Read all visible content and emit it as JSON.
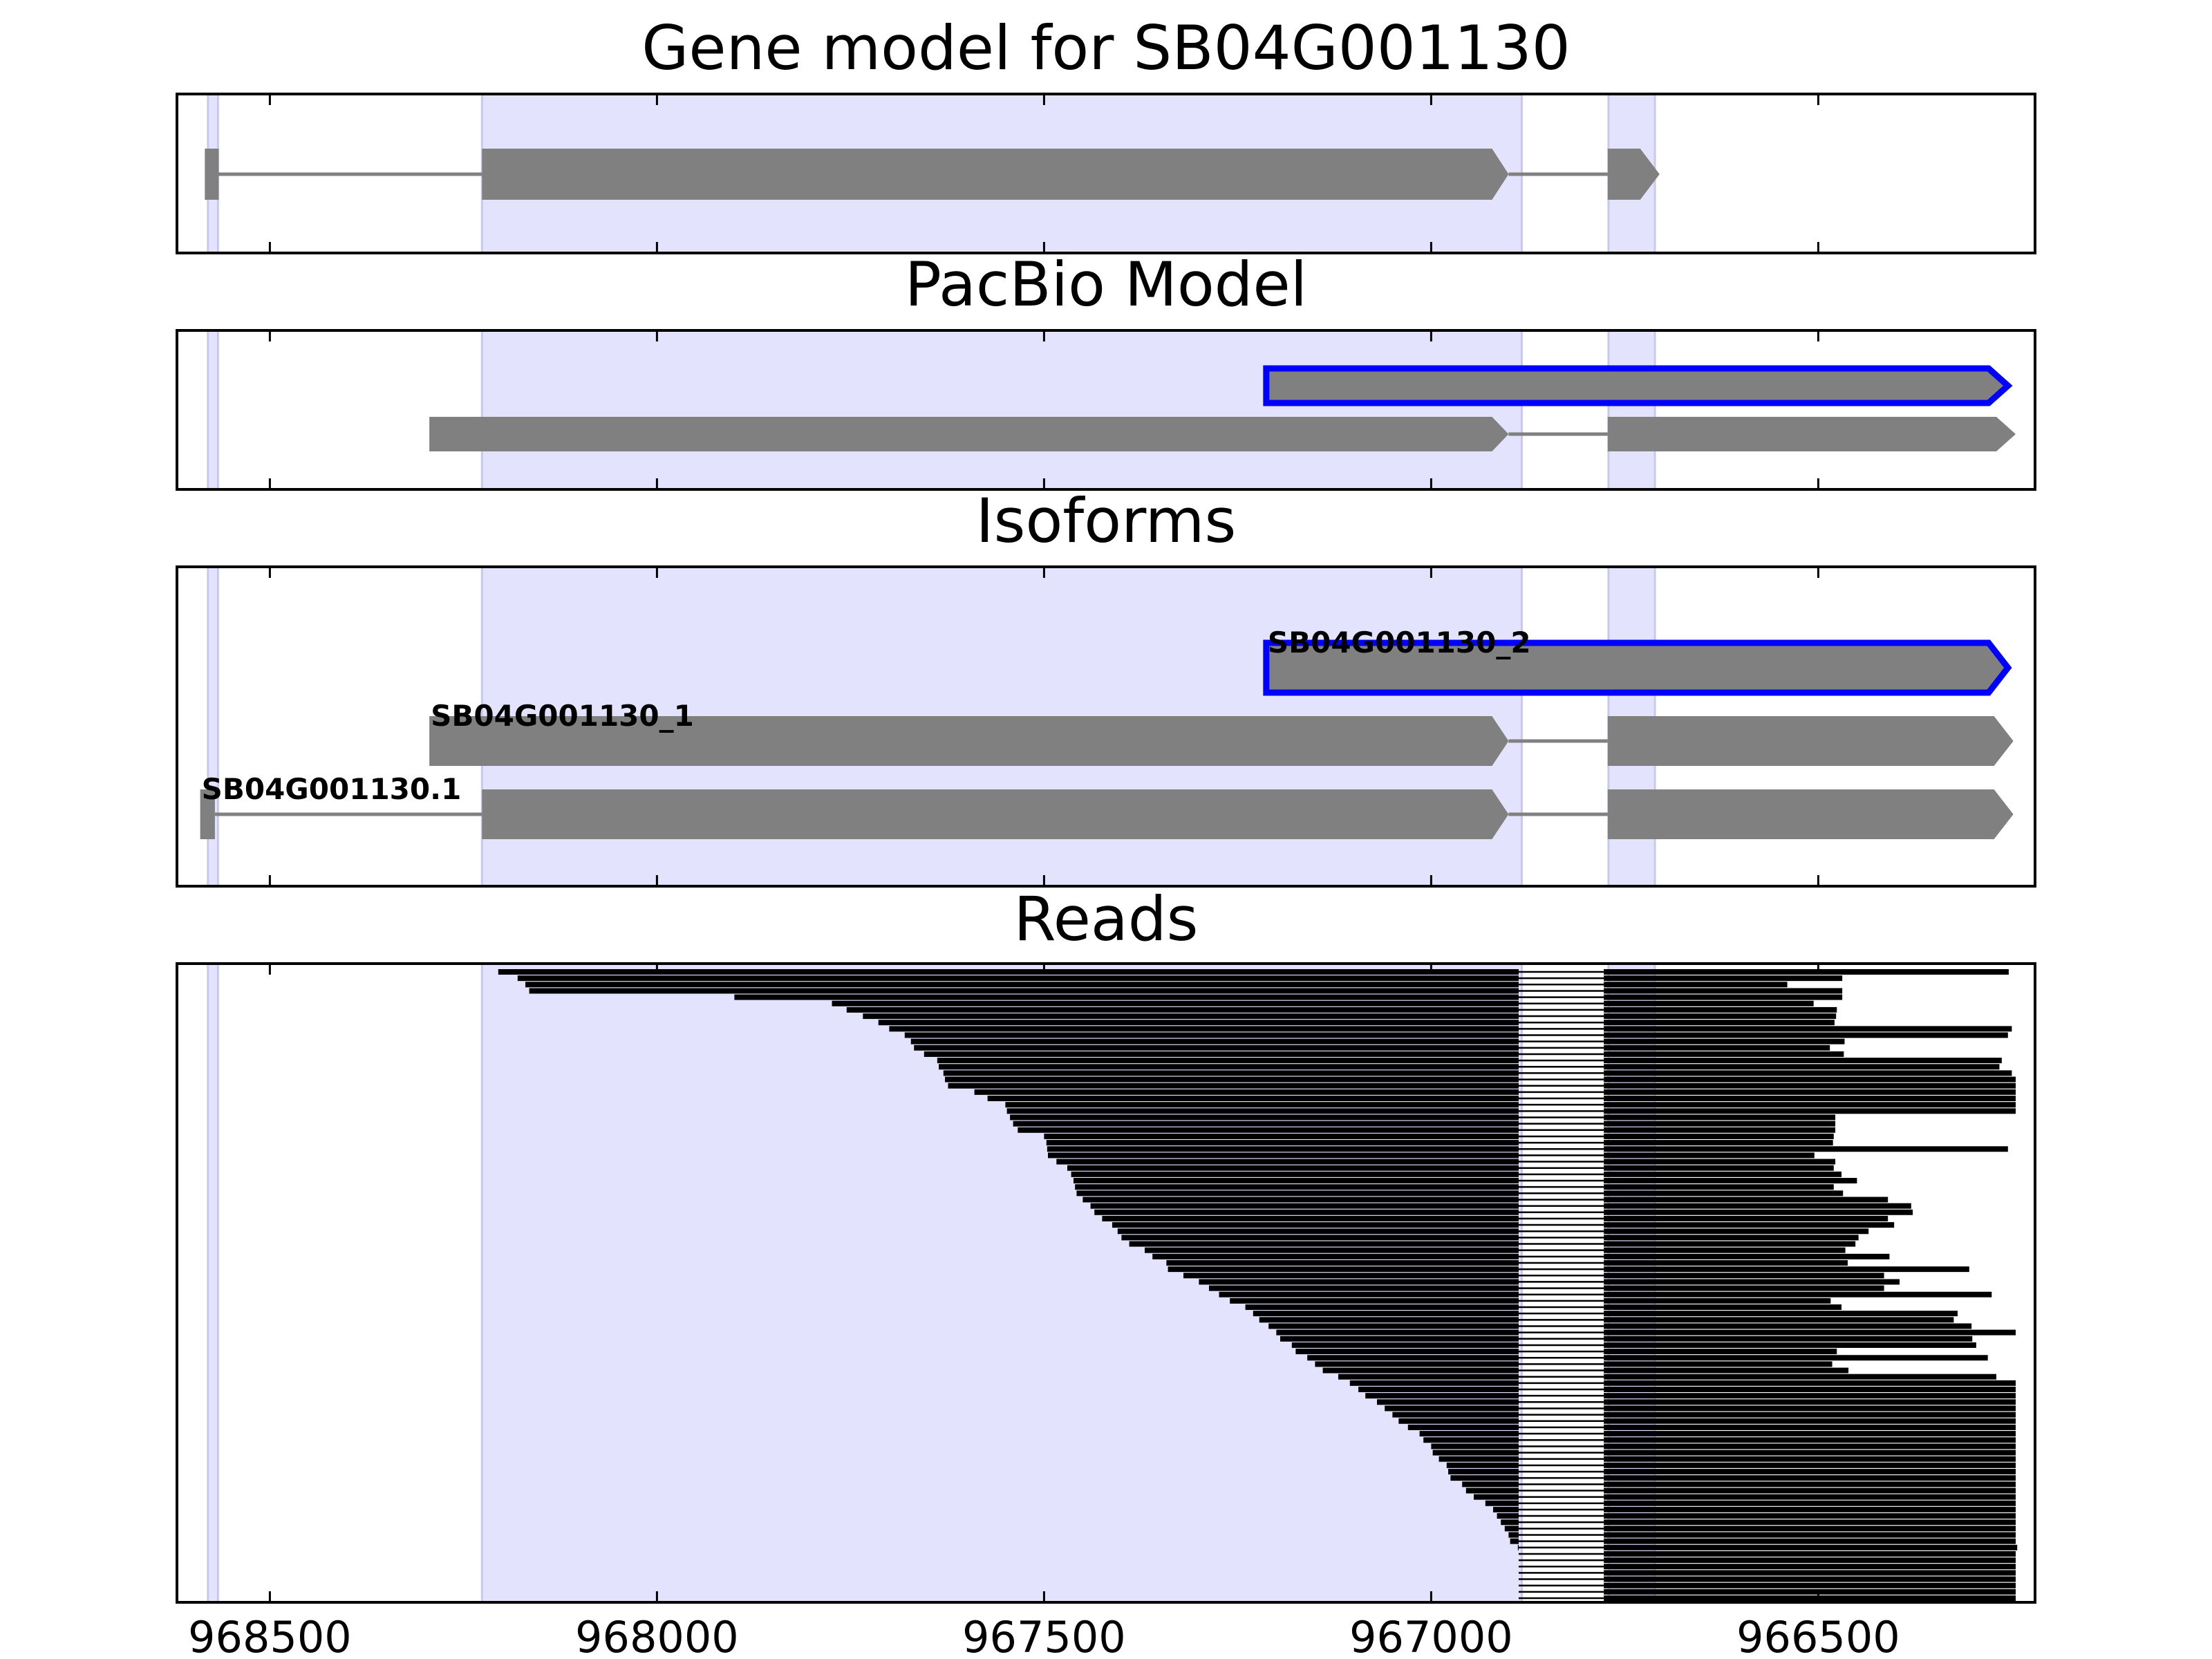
{
  "chart_data": {
    "type": "gene_model_tracks",
    "x_axis": {
      "direction": "reversed",
      "xlim": [
        968620,
        966220
      ],
      "ticks": [
        968500,
        968000,
        967500,
        967000,
        966500
      ],
      "tick_labels": [
        "968500",
        "968000",
        "967500",
        "967000",
        "966500"
      ]
    },
    "highlight_color": "#e3e3fd",
    "highlight_regions": [
      [
        968580,
        968567
      ],
      [
        968226,
        966883
      ],
      [
        966771,
        966711
      ]
    ],
    "panels": [
      {
        "key": "gene",
        "title": "Gene model for SB04G001130",
        "features": [
          {
            "exons": [
              [
                968584,
                968566
              ],
              [
                968226,
                966900
              ],
              [
                966772,
                966705
              ]
            ],
            "fill": "#808080",
            "outline": "",
            "label": ""
          }
        ]
      },
      {
        "key": "pacbio",
        "title": "PacBio Model",
        "features": [
          {
            "exons": [
              [
                967213,
                966255
              ]
            ],
            "fill": "#808080",
            "outline": "#0000ff",
            "label": ""
          },
          {
            "exons": [
              [
                968294,
                966900
              ],
              [
                966772,
                966245
              ]
            ],
            "fill": "#808080",
            "outline": "",
            "label": ""
          }
        ]
      },
      {
        "key": "isoforms",
        "title": "Isoforms",
        "features": [
          {
            "exons": [
              [
                967213,
                966255
              ]
            ],
            "fill": "#808080",
            "outline": "#0000ff",
            "label": "SB04G001130_2"
          },
          {
            "exons": [
              [
                968294,
                966900
              ],
              [
                966772,
                966248
              ]
            ],
            "fill": "#808080",
            "outline": "",
            "label": "SB04G001130_1"
          },
          {
            "exons": [
              [
                968590,
                968571
              ],
              [
                968226,
                966900
              ],
              [
                966772,
                966248
              ]
            ],
            "fill": "#808080",
            "outline": "",
            "label": "SB04G001130.1"
          }
        ]
      },
      {
        "key": "reads",
        "title": "Reads",
        "read_color": "#000000",
        "intron": [
          966887,
          966777
        ],
        "reads": [
          [
            968205,
            966254
          ],
          [
            968180,
            966469
          ],
          [
            968170,
            966540
          ],
          [
            968165,
            966469
          ],
          [
            967900,
            966469
          ],
          [
            967774,
            966506
          ],
          [
            967755,
            966476
          ],
          [
            967734,
            966477
          ],
          [
            967714,
            966479
          ],
          [
            967700,
            966250
          ],
          [
            967680,
            966255
          ],
          [
            967672,
            966466
          ],
          [
            967668,
            966485
          ],
          [
            967655,
            966467
          ],
          [
            967638,
            966263
          ],
          [
            967636,
            966266
          ],
          [
            967630,
            966250
          ],
          [
            967628,
            966245
          ],
          [
            967624,
            966245
          ],
          [
            967590,
            966245
          ],
          [
            967573,
            966245
          ],
          [
            967550,
            966245
          ],
          [
            967548,
            966245
          ],
          [
            967544,
            966478
          ],
          [
            967540,
            966478
          ],
          [
            967534,
            966478
          ],
          [
            967500,
            966480
          ],
          [
            967497,
            966481
          ],
          [
            967496,
            966255
          ],
          [
            967495,
            966505
          ],
          [
            967484,
            966478
          ],
          [
            967470,
            966480
          ],
          [
            967465,
            966470
          ],
          [
            967462,
            966450
          ],
          [
            967460,
            966480
          ],
          [
            967458,
            966468
          ],
          [
            967450,
            966410
          ],
          [
            967440,
            966380
          ],
          [
            967435,
            966378
          ],
          [
            967425,
            966410
          ],
          [
            967412,
            966402
          ],
          [
            967405,
            966435
          ],
          [
            967400,
            966448
          ],
          [
            967390,
            966452
          ],
          [
            967370,
            966465
          ],
          [
            967360,
            966408
          ],
          [
            967342,
            966462
          ],
          [
            967340,
            966305
          ],
          [
            967320,
            966415
          ],
          [
            967300,
            966395
          ],
          [
            967287,
            966415
          ],
          [
            967274,
            966276
          ],
          [
            967260,
            966484
          ],
          [
            967240,
            966470
          ],
          [
            967230,
            966320
          ],
          [
            967222,
            966325
          ],
          [
            967210,
            966302
          ],
          [
            967200,
            966245
          ],
          [
            967195,
            966301
          ],
          [
            967180,
            966296
          ],
          [
            967175,
            966476
          ],
          [
            967160,
            966281
          ],
          [
            967150,
            966482
          ],
          [
            967140,
            966461
          ],
          [
            967120,
            966270
          ],
          [
            967105,
            966245
          ],
          [
            967094,
            966245
          ],
          [
            967085,
            966245
          ],
          [
            967070,
            966245
          ],
          [
            967060,
            966245
          ],
          [
            967050,
            966245
          ],
          [
            967042,
            966245
          ],
          [
            967030,
            966245
          ],
          [
            967015,
            966245
          ],
          [
            967010,
            966245
          ],
          [
            967000,
            966245
          ],
          [
            966998,
            966245
          ],
          [
            966990,
            966245
          ],
          [
            966980,
            966245
          ],
          [
            966978,
            966245
          ],
          [
            966975,
            966245
          ],
          [
            966960,
            966245
          ],
          [
            966955,
            966245
          ],
          [
            966945,
            966245
          ],
          [
            966930,
            966245
          ],
          [
            966920,
            966245
          ],
          [
            966915,
            966245
          ],
          [
            966910,
            966245
          ],
          [
            966905,
            966245
          ],
          [
            966900,
            966245
          ],
          [
            966898,
            966245
          ],
          [
            966888,
            966243
          ],
          [
            966877,
            966245
          ],
          [
            966873,
            966245
          ],
          [
            966870,
            966245
          ],
          [
            966868,
            966245
          ],
          [
            966866,
            966245
          ],
          [
            966866,
            966245
          ],
          [
            966866,
            966245
          ],
          [
            966866,
            966245
          ]
        ]
      }
    ]
  }
}
